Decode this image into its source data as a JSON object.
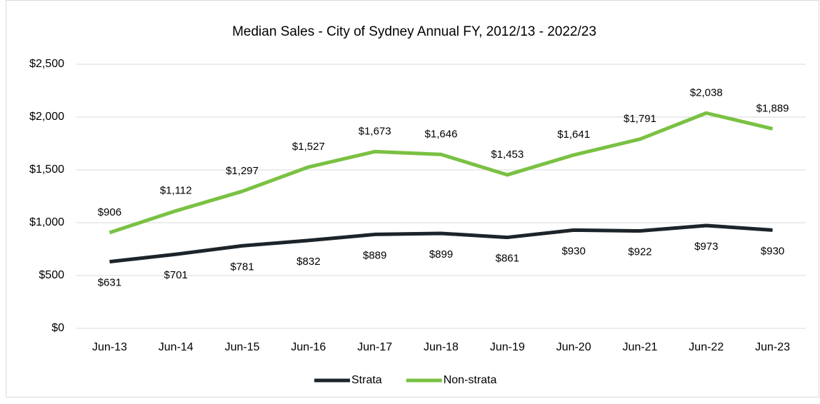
{
  "chart_data": {
    "type": "line",
    "title": "Median Sales - City of Sydney Annual FY, 2012/13 - 2022/23",
    "categories": [
      "Jun-13",
      "Jun-14",
      "Jun-15",
      "Jun-16",
      "Jun-17",
      "Jun-18",
      "Jun-19",
      "Jun-20",
      "Jun-21",
      "Jun-22",
      "Jun-23"
    ],
    "series": [
      {
        "name": "Strata",
        "color": "#1b242a",
        "values": [
          631,
          701,
          781,
          832,
          889,
          899,
          861,
          930,
          922,
          973,
          930
        ],
        "value_labels": [
          "$631",
          "$701",
          "$781",
          "$832",
          "$889",
          "$899",
          "$861",
          "$930",
          "$922",
          "$973",
          "$930"
        ]
      },
      {
        "name": "Non-strata",
        "color": "#7ac143",
        "values": [
          906,
          1112,
          1297,
          1527,
          1673,
          1646,
          1453,
          1641,
          1791,
          2038,
          1889
        ],
        "value_labels": [
          "$906",
          "$1,112",
          "$1,297",
          "$1,527",
          "$1,673",
          "$1,646",
          "$1,453",
          "$1,641",
          "$1,791",
          "$2,038",
          "$1,889"
        ]
      }
    ],
    "ylim": [
      0,
      2500
    ],
    "yticks": [
      {
        "value": 0,
        "label": "$0"
      },
      {
        "value": 500,
        "label": "$500"
      },
      {
        "value": 1000,
        "label": "$1,000"
      },
      {
        "value": 1500,
        "label": "$1,500"
      },
      {
        "value": 2000,
        "label": "$2,000"
      },
      {
        "value": 2500,
        "label": "$2,500"
      }
    ],
    "grid": true,
    "legend": "bottom"
  }
}
